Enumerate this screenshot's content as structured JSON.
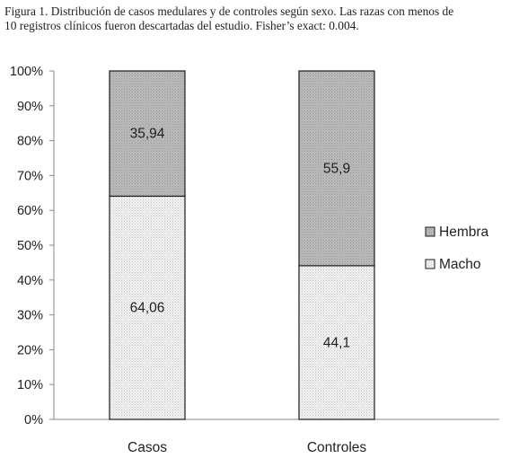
{
  "caption": {
    "line1": "Figura 1. Distribución de casos medulares y de controles según sexo. Las razas con menos de",
    "line2": "10 registros clínicos fueron descartadas del estudio. Fisher’s exact: 0.004."
  },
  "chart_data": {
    "type": "bar",
    "stacked": true,
    "percent": true,
    "categories": [
      "Casos",
      "Controles"
    ],
    "series": [
      {
        "name": "Macho",
        "values": [
          64.06,
          44.1
        ],
        "labels": [
          "64,06",
          "44,1"
        ],
        "color": "#ececec"
      },
      {
        "name": "Hembra",
        "values": [
          35.94,
          55.9
        ],
        "labels": [
          "35,94",
          "55,9"
        ],
        "color": "#b4b4b4"
      }
    ],
    "legend_order": [
      "Hembra",
      "Macho"
    ],
    "legend_position": "right",
    "ylim": [
      0,
      100
    ],
    "yticks": [
      "0%",
      "10%",
      "20%",
      "30%",
      "40%",
      "50%",
      "60%",
      "70%",
      "80%",
      "90%",
      "100%"
    ],
    "grid": false
  }
}
